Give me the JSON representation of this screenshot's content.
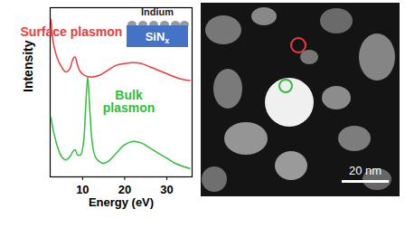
{
  "chart_data": {
    "type": "line",
    "x_label": "Energy (eV)",
    "y_label": "Intensity",
    "xlim": [
      2.3,
      36
    ],
    "xticks": [
      10,
      20,
      30
    ],
    "ylim": [
      0,
      10
    ],
    "tick_labels": "x",
    "grid": false,
    "series": [
      {
        "name": "Surface plasmon",
        "color": "#ee3b3b",
        "x": [
          2.5,
          3,
          4,
          5,
          6,
          7,
          7.6,
          8.2,
          8.8,
          9.5,
          10.5,
          12,
          14,
          16,
          18,
          20,
          22,
          24,
          26,
          28,
          30,
          32,
          34,
          35.5
        ],
        "values": [
          9.3,
          8.0,
          7.0,
          6.5,
          6.2,
          6.4,
          6.9,
          7.1,
          6.6,
          6.2,
          6.0,
          5.9,
          6.0,
          6.3,
          6.6,
          6.7,
          6.75,
          6.7,
          6.5,
          6.3,
          6.1,
          5.9,
          5.75,
          5.7
        ]
      },
      {
        "name": "Bulk plasmon",
        "color": "#2fbf3a",
        "x": [
          2.5,
          3,
          4,
          5,
          6,
          7,
          7.7,
          8.2,
          8.8,
          9.5,
          10.2,
          10.7,
          11.2,
          11.7,
          12.3,
          13,
          14,
          15,
          16,
          18,
          20,
          22,
          24,
          26,
          28,
          30,
          32,
          34,
          35.5
        ],
        "values": [
          3.5,
          2.8,
          1.8,
          1.2,
          1.0,
          1.2,
          1.5,
          1.6,
          1.3,
          1.3,
          2.0,
          4.0,
          5.9,
          4.0,
          2.0,
          1.2,
          0.9,
          0.8,
          0.9,
          1.4,
          1.9,
          2.1,
          2.0,
          1.7,
          1.4,
          1.1,
          0.8,
          0.6,
          0.5
        ]
      }
    ],
    "inset": {
      "top_label": "Indium",
      "substrate_label": "SiN",
      "substrate_subscript": "x"
    }
  },
  "image": {
    "scale_bar": "20 nm"
  }
}
